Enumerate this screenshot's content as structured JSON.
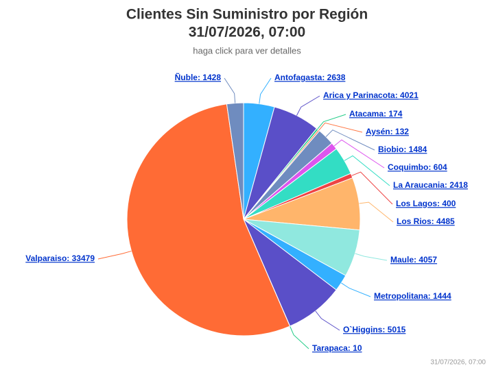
{
  "chart_data": {
    "type": "pie",
    "title_lines": [
      "Clientes Sin Suministro por Región",
      "31/07/2026, 07:00"
    ],
    "subtitle": "haga click para ver detalles",
    "credit": "31/07/2026, 07:00",
    "values": [
      2638,
      4021,
      174,
      132,
      1484,
      604,
      2418,
      400,
      4485,
      4057,
      1444,
      5015,
      10,
      33479,
      1428
    ],
    "value_labels": [
      "Antofagasta: 2638",
      "Arica y Parinacota: 4021",
      "Atacama: 174",
      "Aysén: 132",
      "Biobio: 1484",
      "Coquimbo: 604",
      "La Araucania: 2418",
      "Los Lagos: 400",
      "Los Rios: 4485",
      "Maule: 4057",
      "Metropolitana: 1444",
      "O`Higgins: 5015",
      "Tarapaca: 10",
      "Valparaiso: 33479",
      "Ñuble: 1428"
    ],
    "colors": [
      "#33b0ff",
      "#5a4fc8",
      "#22cc88",
      "#ff7744",
      "#6f8cbf",
      "#dd55ee",
      "#33ddc4",
      "#ee4444",
      "#ffb56b",
      "#90e8df",
      "#33b0ff",
      "#5a4fc8",
      "#22cc88",
      "#ff6b35",
      "#6f8cbf"
    ]
  }
}
